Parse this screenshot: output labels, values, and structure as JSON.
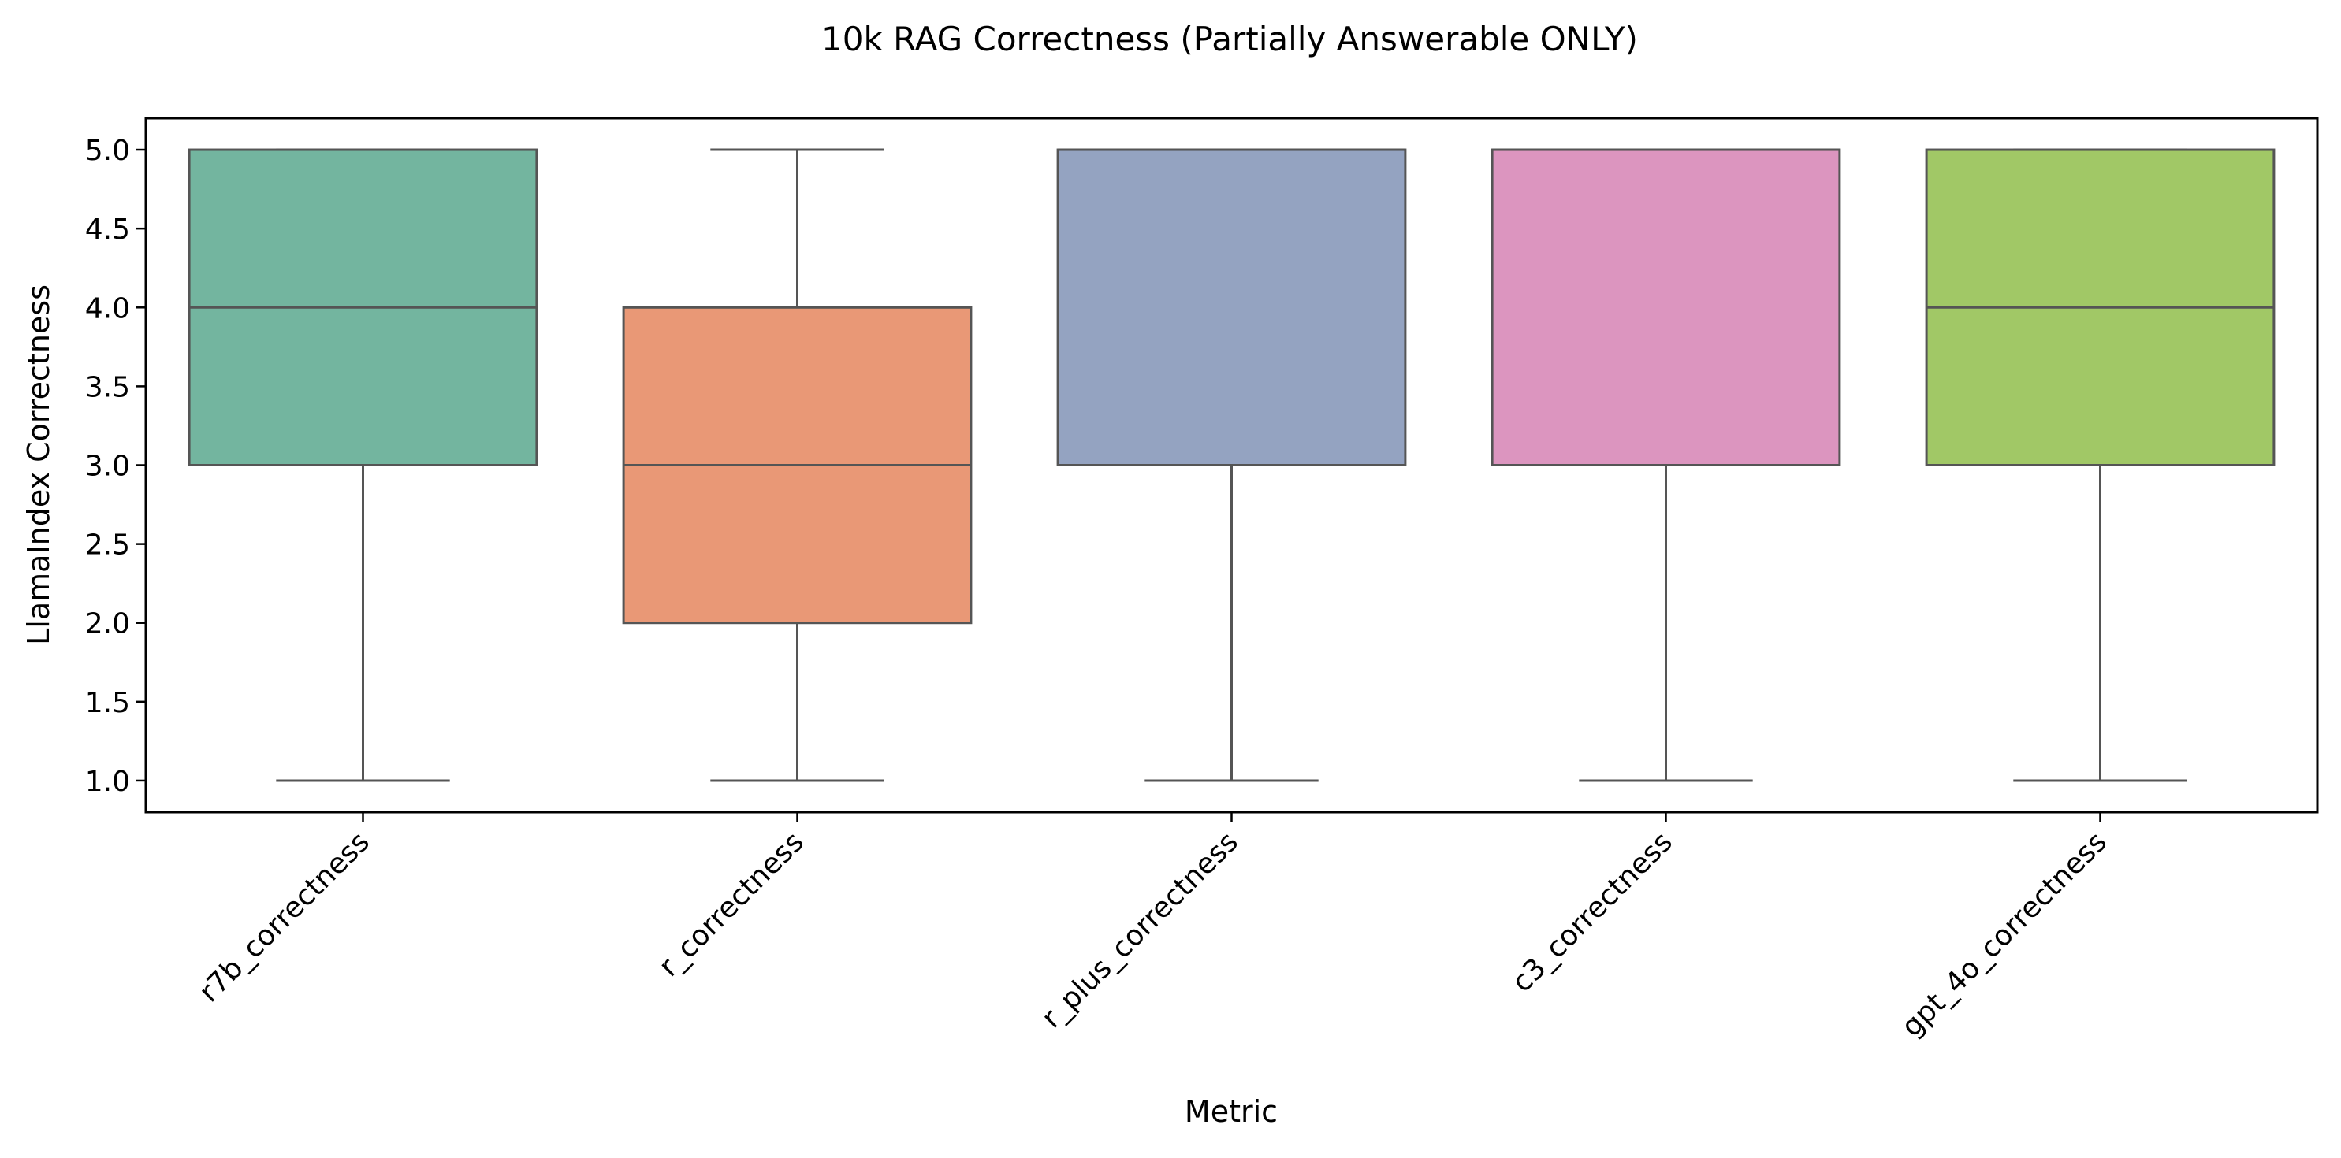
{
  "chart_data": {
    "type": "box",
    "title": "10k RAG Correctness (Partially Answerable ONLY)",
    "xlabel": "Metric",
    "ylabel": "LlamaIndex Correctness",
    "ylim": [
      0.8,
      5.2
    ],
    "yticks": [
      "1.0",
      "1.5",
      "2.0",
      "2.5",
      "3.0",
      "3.5",
      "4.0",
      "4.5",
      "5.0"
    ],
    "grid": false,
    "legend": "none",
    "categories": [
      "r7b_correctness",
      "r_correctness",
      "r_plus_correctness",
      "c3_correctness",
      "gpt_4o_correctness"
    ],
    "boxes": [
      {
        "category": "r7b_correctness",
        "min": 1.0,
        "q1": 3.0,
        "median": 4.0,
        "q3": 5.0,
        "max": 5.0,
        "color": "#73b59f"
      },
      {
        "category": "r_correctness",
        "min": 1.0,
        "q1": 2.0,
        "median": 3.0,
        "q3": 4.0,
        "max": 5.0,
        "color": "#e99876"
      },
      {
        "category": "r_plus_correctness",
        "min": 1.0,
        "q1": 3.0,
        "median": 5.0,
        "q3": 5.0,
        "max": 5.0,
        "color": "#94a3c1"
      },
      {
        "category": "c3_correctness",
        "min": 1.0,
        "q1": 3.0,
        "median": 5.0,
        "q3": 5.0,
        "max": 5.0,
        "color": "#dc95bf"
      },
      {
        "category": "gpt_4o_correctness",
        "min": 1.0,
        "q1": 3.0,
        "median": 4.0,
        "q3": 5.0,
        "max": 5.0,
        "color": "#a1c866"
      }
    ],
    "line_color": "#555555"
  }
}
